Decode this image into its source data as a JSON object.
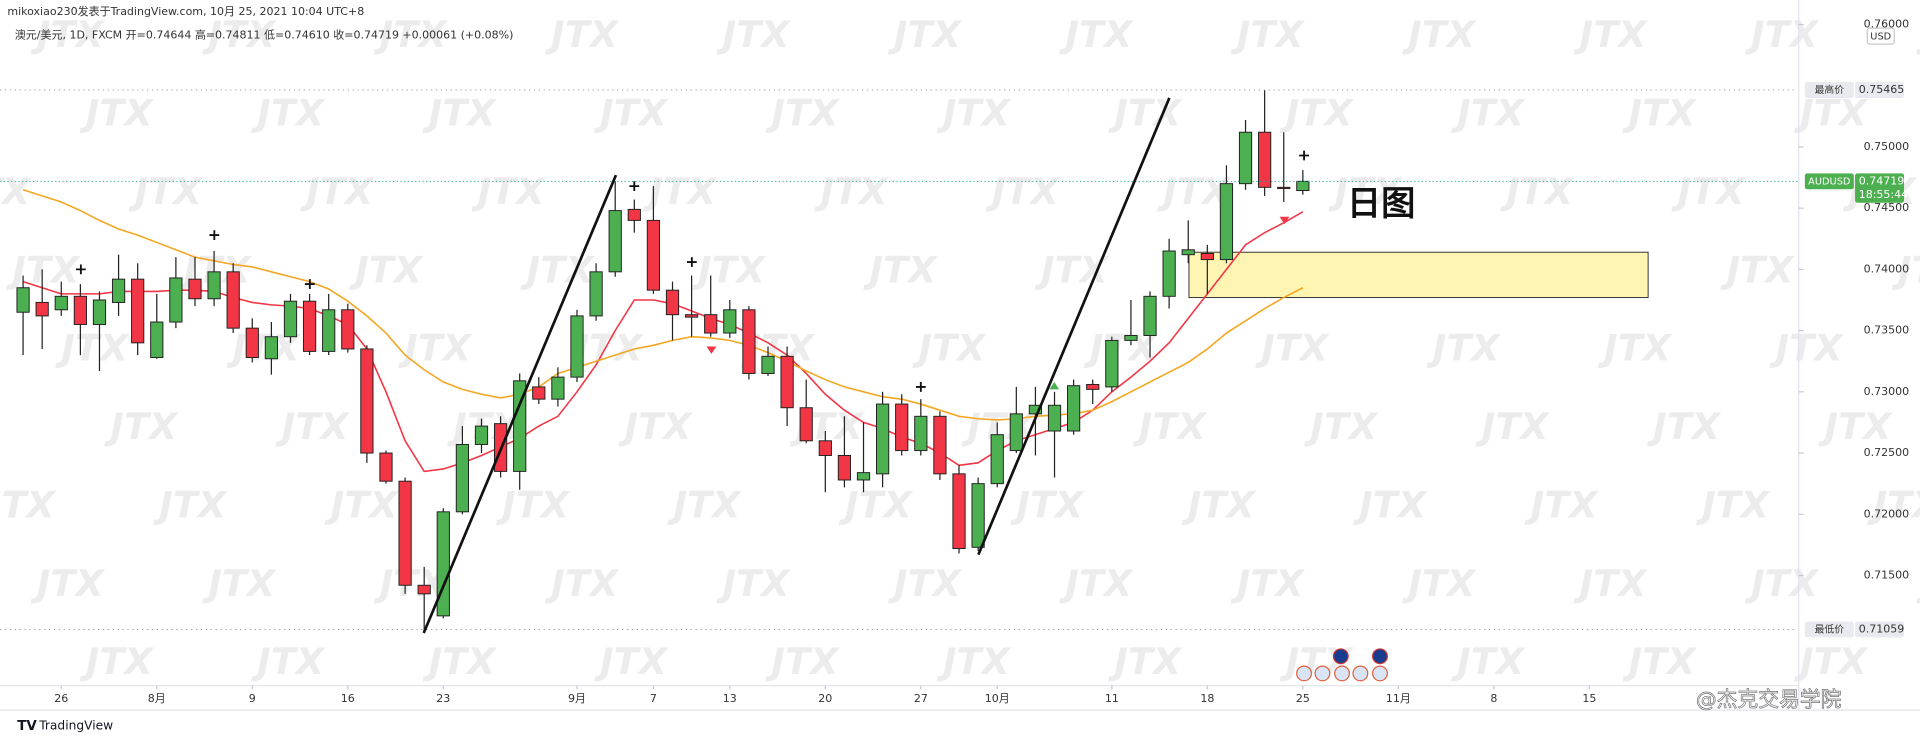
{
  "header": {
    "publisher": "mikoxiao230发表于TradingView.com, 10月 25, 2021 10:04 UTC+8",
    "symbol_line": "澳元/美元, 1D, FXCM  开=0.74644  高=0.74811  低=0.74610  收=0.74719  +0.00061 (+0.08%)"
  },
  "chart_data": {
    "type": "candlestick",
    "x": [
      "07-22",
      "07-23",
      "07-26",
      "07-27",
      "07-28",
      "07-29",
      "07-30",
      "08-02",
      "08-03",
      "08-04",
      "08-05",
      "08-06",
      "08-09",
      "08-10",
      "08-11",
      "08-12",
      "08-13",
      "08-16",
      "08-17",
      "08-18",
      "08-19",
      "08-20",
      "08-23",
      "08-24",
      "08-25",
      "08-26",
      "08-27",
      "08-30",
      "08-31",
      "09-01",
      "09-02",
      "09-03",
      "09-06",
      "09-07",
      "09-08",
      "09-09",
      "09-10",
      "09-13",
      "09-14",
      "09-15",
      "09-16",
      "09-17",
      "09-20",
      "09-21",
      "09-22",
      "09-23",
      "09-24",
      "09-27",
      "09-28",
      "09-29",
      "09-30",
      "10-01",
      "10-04",
      "10-05",
      "10-06",
      "10-07",
      "10-08",
      "10-11",
      "10-12",
      "10-13",
      "10-14",
      "10-15",
      "10-18",
      "10-19",
      "10-20",
      "10-21",
      "10-22",
      "10-25",
      "10-26",
      "10-27",
      "10-28",
      "10-29",
      "11-01",
      "11-02",
      "11-03",
      "11-04",
      "11-05",
      "11-08",
      "11-09",
      "11-10",
      "11-11",
      "11-12",
      "11-15"
    ],
    "open": [
      0.7365,
      0.7373,
      0.7367,
      0.7378,
      0.7355,
      0.7373,
      0.7392,
      0.7328,
      0.7357,
      0.7392,
      0.7376,
      0.7398,
      0.7352,
      0.7327,
      0.7345,
      0.7374,
      0.7333,
      0.7367,
      0.7335,
      0.725,
      0.7227,
      0.7142,
      0.7117,
      0.7202,
      0.7257,
      0.7274,
      0.7235,
      0.7304,
      0.7294,
      0.7312,
      0.7362,
      0.7398,
      0.7449,
      0.744,
      0.7383,
      0.7363,
      0.7363,
      0.7348,
      0.7367,
      0.7315,
      0.7329,
      0.7287,
      0.726,
      0.7248,
      0.7228,
      0.7233,
      0.729,
      0.7252,
      0.728,
      0.7233,
      0.7173,
      0.7225,
      0.7252,
      0.7282,
      0.7268,
      0.7268,
      0.7306,
      0.7304,
      0.7342,
      0.7346,
      0.7378,
      0.7412,
      0.7413,
      0.7408,
      0.747,
      0.7512,
      0.7467,
      0.74644,
      null,
      null,
      null,
      null,
      null,
      null,
      null,
      null,
      null,
      null,
      null,
      null,
      null,
      null,
      null
    ],
    "high": [
      0.7395,
      0.74,
      0.739,
      0.7388,
      0.7382,
      0.7412,
      0.7405,
      0.738,
      0.741,
      0.741,
      0.7415,
      0.7405,
      0.736,
      0.7357,
      0.738,
      0.738,
      0.738,
      0.7372,
      0.7338,
      0.7252,
      0.723,
      0.7157,
      0.7205,
      0.7272,
      0.7278,
      0.728,
      0.7315,
      0.7312,
      0.732,
      0.7367,
      0.7405,
      0.7472,
      0.7457,
      0.7468,
      0.739,
      0.7395,
      0.7395,
      0.7375,
      0.737,
      0.7337,
      0.7337,
      0.731,
      0.7268,
      0.728,
      0.7275,
      0.73,
      0.7298,
      0.7294,
      0.7284,
      0.724,
      0.723,
      0.7275,
      0.7304,
      0.7304,
      0.73,
      0.731,
      0.731,
      0.7345,
      0.7375,
      0.7382,
      0.7425,
      0.744,
      0.742,
      0.7485,
      0.7522,
      0.75465,
      0.7512,
      0.74811,
      null,
      null,
      null,
      null,
      null,
      null,
      null,
      null,
      null,
      null,
      null,
      null,
      null,
      null,
      null
    ],
    "low": [
      0.733,
      0.7335,
      0.7362,
      0.733,
      0.7317,
      0.7362,
      0.733,
      0.7327,
      0.7352,
      0.737,
      0.737,
      0.7348,
      0.7324,
      0.7314,
      0.734,
      0.733,
      0.733,
      0.7332,
      0.7242,
      0.7225,
      0.7135,
      0.71059,
      0.7115,
      0.72,
      0.725,
      0.723,
      0.722,
      0.729,
      0.7288,
      0.7308,
      0.7358,
      0.7394,
      0.743,
      0.738,
      0.7342,
      0.7345,
      0.7345,
      0.7344,
      0.731,
      0.7313,
      0.7272,
      0.7258,
      0.7218,
      0.7222,
      0.7218,
      0.7222,
      0.7248,
      0.7248,
      0.7228,
      0.7168,
      0.717,
      0.7222,
      0.725,
      0.7248,
      0.723,
      0.7265,
      0.729,
      0.73,
      0.7338,
      0.7328,
      0.7368,
      0.7405,
      0.738,
      0.7405,
      0.7465,
      0.746,
      0.7455,
      0.7461,
      null,
      null,
      null,
      null,
      null,
      null,
      null,
      null,
      null,
      null,
      null,
      null,
      null,
      null,
      null
    ],
    "close": [
      0.7385,
      0.7362,
      0.7378,
      0.7355,
      0.7375,
      0.7392,
      0.734,
      0.7357,
      0.7393,
      0.7376,
      0.7398,
      0.7352,
      0.7328,
      0.7345,
      0.7374,
      0.7333,
      0.7367,
      0.7335,
      0.725,
      0.7227,
      0.7142,
      0.7135,
      0.7202,
      0.7257,
      0.7272,
      0.7235,
      0.7309,
      0.7294,
      0.7312,
      0.7362,
      0.7398,
      0.7448,
      0.744,
      0.7383,
      0.7363,
      0.7361,
      0.7348,
      0.7367,
      0.7315,
      0.7329,
      0.7287,
      0.726,
      0.7248,
      0.7228,
      0.7234,
      0.729,
      0.7252,
      0.728,
      0.7233,
      0.7172,
      0.7225,
      0.7265,
      0.7282,
      0.7289,
      0.7289,
      0.7305,
      0.7302,
      0.7342,
      0.7346,
      0.7378,
      0.7415,
      0.7416,
      0.7408,
      0.747,
      0.7512,
      0.7467,
      0.7466,
      0.74719,
      null,
      null,
      null,
      null,
      null,
      null,
      null,
      null,
      null,
      null,
      null,
      null,
      null,
      null,
      null
    ],
    "up_color": "#4caf50",
    "down_color": "#f23645",
    "lines": [
      {
        "color": "#f23645",
        "values": [
          0.739,
          0.7385,
          0.738,
          0.738,
          0.738,
          0.7382,
          0.7382,
          0.7382,
          0.7383,
          0.7383,
          0.7382,
          0.7377,
          0.7373,
          0.7371,
          0.737,
          0.7368,
          0.7362,
          0.7355,
          0.7335,
          0.73,
          0.726,
          0.7235,
          0.7237,
          0.7242,
          0.7248,
          0.7255,
          0.7262,
          0.7272,
          0.728,
          0.73,
          0.7322,
          0.735,
          0.7375,
          0.7375,
          0.7372,
          0.7366,
          0.736,
          0.7355,
          0.7348,
          0.734,
          0.733,
          0.7315,
          0.7298,
          0.7285,
          0.7275,
          0.727,
          0.7263,
          0.7258,
          0.725,
          0.724,
          0.7242,
          0.7252,
          0.726,
          0.7265,
          0.727,
          0.7275,
          0.7285,
          0.73,
          0.7312,
          0.7325,
          0.734,
          0.736,
          0.738,
          0.74,
          0.742,
          0.743,
          0.7438,
          0.7447,
          null,
          null,
          null,
          null,
          null,
          null,
          null,
          null,
          null,
          null,
          null,
          null,
          null,
          null,
          null
        ]
      },
      {
        "color": "#f5a623",
        "values": [
          0.7465,
          0.746,
          0.7455,
          0.7448,
          0.744,
          0.7433,
          0.7428,
          0.7422,
          0.7416,
          0.741,
          0.7407,
          0.7404,
          0.7402,
          0.7398,
          0.7394,
          0.739,
          0.7384,
          0.7374,
          0.7362,
          0.7348,
          0.733,
          0.7318,
          0.7308,
          0.7302,
          0.7298,
          0.7295,
          0.7298,
          0.7304,
          0.7315,
          0.732,
          0.7325,
          0.733,
          0.7335,
          0.7338,
          0.7342,
          0.7345,
          0.7344,
          0.7342,
          0.7338,
          0.7332,
          0.7325,
          0.7317,
          0.731,
          0.7304,
          0.73,
          0.7296,
          0.7294,
          0.729,
          0.7285,
          0.728,
          0.7278,
          0.7277,
          0.7278,
          0.728,
          0.7281,
          0.7282,
          0.7285,
          0.7292,
          0.73,
          0.7308,
          0.7316,
          0.7324,
          0.7335,
          0.7348,
          0.7358,
          0.7368,
          0.7377,
          0.7385,
          null,
          null,
          null,
          null,
          null,
          null,
          null,
          null,
          null,
          null,
          null,
          null,
          null,
          null,
          null
        ]
      }
    ],
    "ylim": [
      0.706,
      0.762
    ],
    "yticks": [
      {
        "value": 0.715,
        "label": "0.71500"
      },
      {
        "value": 0.72,
        "label": "0.72000"
      },
      {
        "value": 0.725,
        "label": "0.72500"
      },
      {
        "value": 0.73,
        "label": "0.73000"
      },
      {
        "value": 0.735,
        "label": "0.73500"
      },
      {
        "value": 0.74,
        "label": "0.74000"
      },
      {
        "value": 0.745,
        "label": "0.74500"
      },
      {
        "value": 0.75,
        "label": "0.75000"
      },
      {
        "value": 0.76,
        "label": "0.76000"
      }
    ],
    "xticks": [
      {
        "value": "07-26",
        "label": "26"
      },
      {
        "value": "08-02",
        "label": "8月"
      },
      {
        "value": "08-09",
        "label": "9"
      },
      {
        "value": "08-16",
        "label": "16"
      },
      {
        "value": "08-23",
        "label": "23"
      },
      {
        "value": "09-01",
        "label": "9月"
      },
      {
        "value": "09-07",
        "label": "7"
      },
      {
        "value": "09-13",
        "label": "13"
      },
      {
        "value": "09-20",
        "label": "20"
      },
      {
        "value": "09-27",
        "label": "27"
      },
      {
        "value": "10-01",
        "label": "10月"
      },
      {
        "value": "10-11",
        "label": "11"
      },
      {
        "value": "10-18",
        "label": "18"
      },
      {
        "value": "10-25",
        "label": "25"
      },
      {
        "value": "11-01",
        "label": "11月"
      },
      {
        "value": "11-08",
        "label": "8"
      },
      {
        "value": "11-15",
        "label": "15"
      }
    ],
    "price_lines": [
      {
        "name": "最高价",
        "value": 0.75465,
        "label": "0.75465"
      },
      {
        "name": "AUDUSD",
        "value": 0.74719,
        "label": "0.74719",
        "countdown": "18:55:44"
      },
      {
        "name": "最低价",
        "value": 0.71059,
        "label": "0.71059"
      }
    ],
    "currency": "USD",
    "annotation": "日图"
  },
  "watermark": "JTX",
  "credit": "@杰克交易学院",
  "brand": "TradingView"
}
